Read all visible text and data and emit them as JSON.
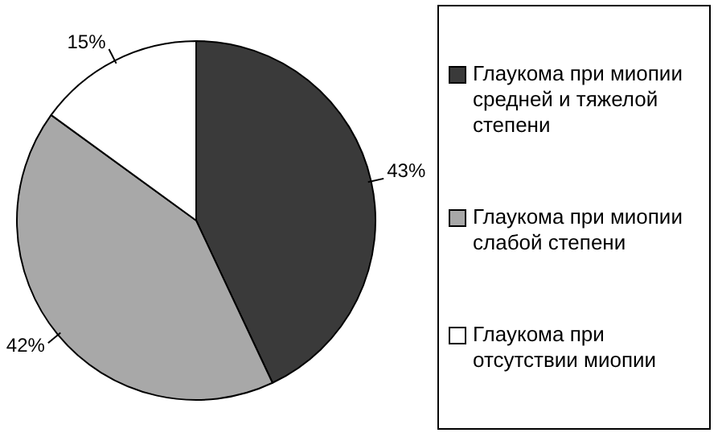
{
  "chart_data": {
    "type": "pie",
    "categories": [
      "Глаукома при миопии средней и тяжелой степени",
      "Глаукома при миопии слабой степени",
      "Глаукома при отсутствии миопии"
    ],
    "values": [
      43,
      42,
      15
    ],
    "colors": [
      "#3a3a3a",
      "#a8a8a8",
      "#ffffff"
    ],
    "value_labels": [
      "43%",
      "42%",
      "15%"
    ],
    "legend": "right"
  }
}
